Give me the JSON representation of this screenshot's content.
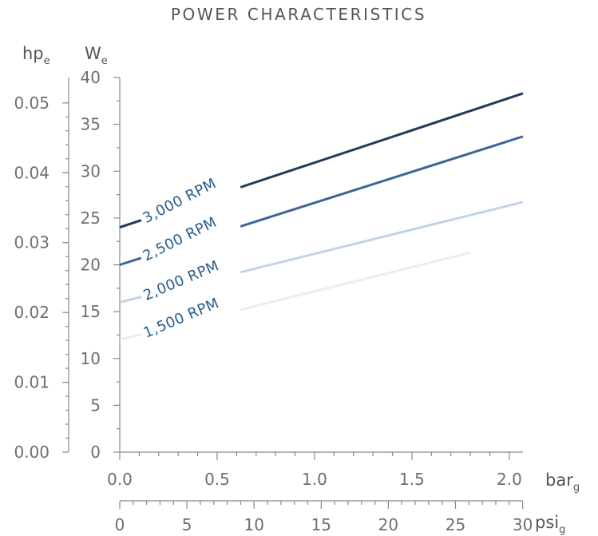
{
  "chart_data": {
    "type": "line",
    "title": "POWER CHARACTERISTICS",
    "y_axes": [
      {
        "unit": "hp",
        "unit_sub": "e",
        "ticks": [
          "0.00",
          "0.01",
          "0.02",
          "0.03",
          "0.04",
          "0.05"
        ],
        "tick_values": [
          0,
          0.01,
          0.02,
          0.03,
          0.04,
          0.05
        ]
      },
      {
        "unit": "W",
        "unit_sub": "e",
        "ticks": [
          "0",
          "5",
          "10",
          "15",
          "20",
          "25",
          "30",
          "35",
          "40"
        ],
        "tick_values": [
          0,
          5,
          10,
          15,
          20,
          25,
          30,
          35,
          40
        ],
        "ylim": [
          0,
          40
        ]
      }
    ],
    "x_axes": [
      {
        "unit": "bar",
        "unit_sub": "g",
        "ticks": [
          "0.0",
          "0.5",
          "1.0",
          "1.5",
          "2.0"
        ],
        "tick_values": [
          0,
          0.5,
          1.0,
          1.5,
          2.0
        ],
        "xlim": [
          0,
          2.07
        ]
      },
      {
        "unit": "psi",
        "unit_sub": "g",
        "ticks": [
          "0",
          "5",
          "10",
          "15",
          "20",
          "25",
          "30"
        ],
        "tick_values": [
          0,
          5,
          10,
          15,
          20,
          25,
          30
        ]
      }
    ],
    "series": [
      {
        "name": "3,000 RPM",
        "color": "#1f3a5c",
        "x": [
          0,
          2.07
        ],
        "y": [
          24,
          38.3
        ]
      },
      {
        "name": "2,500 RPM",
        "color": "#3d6595",
        "x": [
          0,
          2.07
        ],
        "y": [
          20,
          33.7
        ]
      },
      {
        "name": "2,000 RPM",
        "color": "#c3d3e6",
        "x": [
          0,
          2.07
        ],
        "y": [
          16,
          26.7
        ]
      },
      {
        "name": "1,500 RPM",
        "color": "#eaeef4",
        "x": [
          0,
          1.8
        ],
        "y": [
          12,
          21.3
        ]
      }
    ],
    "grid": false,
    "legend": "inline labels"
  }
}
